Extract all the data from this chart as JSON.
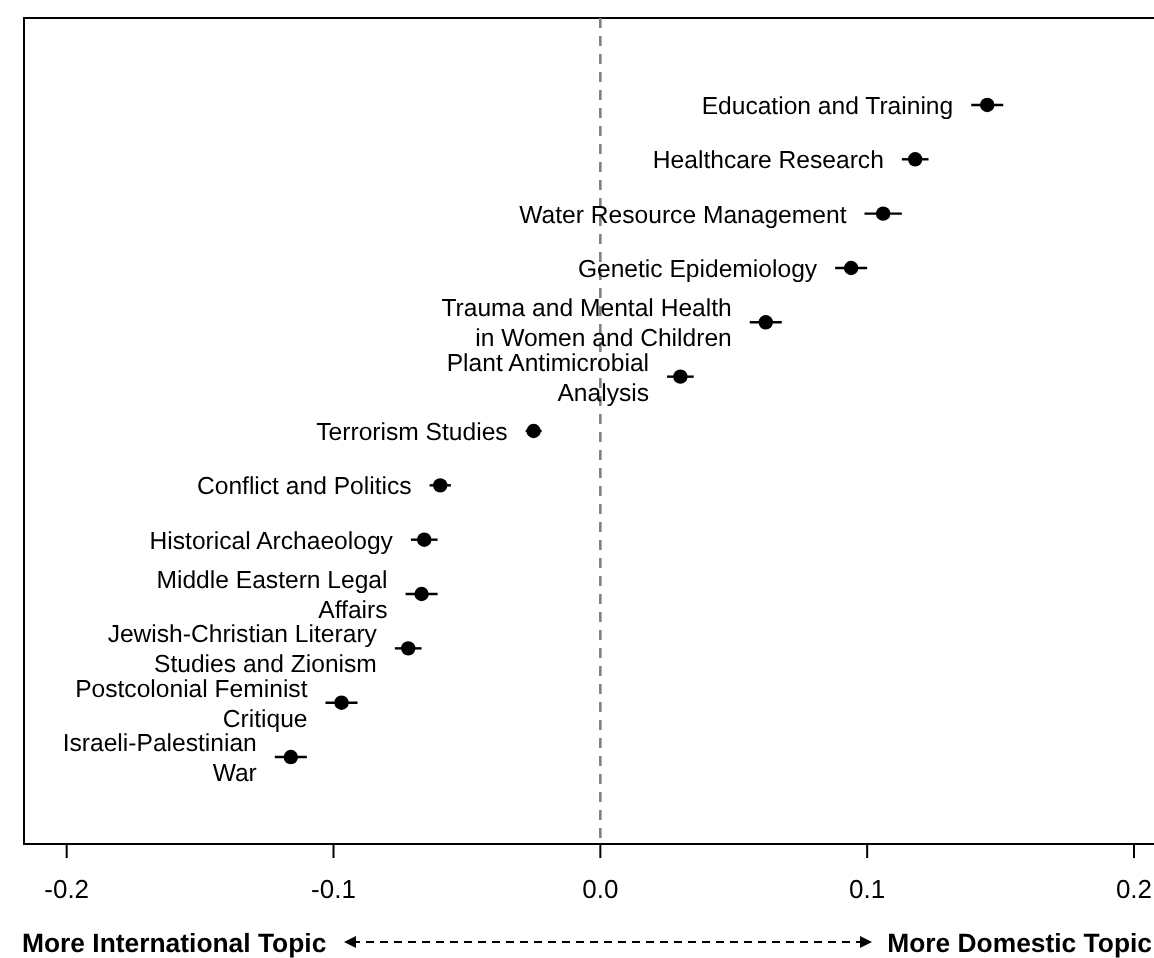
{
  "chart_data": {
    "type": "scatter",
    "orientation": "horizontal",
    "categories": [
      "Education and Training",
      "Healthcare Research",
      "Water Resource Management",
      "Genetic Epidemiology",
      "Trauma and Mental Health\nin Women and Children",
      "Plant Antimicrobial\nAnalysis",
      "Terrorism Studies",
      "Conflict and Politics",
      "Historical Archaeology",
      "Middle Eastern Legal\nAffairs",
      "Jewish-Christian Literary\nStudies and Zionism",
      "Postcolonial Feminist\nCritique",
      "Israeli-Palestinian\nWar"
    ],
    "series": [
      {
        "color": "#000000",
        "values": [
          0.145,
          0.118,
          0.106,
          0.094,
          0.062,
          0.03,
          -0.025,
          -0.06,
          -0.066,
          -0.067,
          -0.072,
          -0.097,
          -0.116
        ],
        "errors": [
          0.006,
          0.005,
          0.007,
          0.006,
          0.006,
          0.005,
          0.003,
          0.004,
          0.005,
          0.006,
          0.005,
          0.006,
          0.006
        ]
      }
    ],
    "xlim": [
      -0.216,
      0.212
    ],
    "xticks": [
      {
        "value": -0.2,
        "label": "-0.2"
      },
      {
        "value": -0.1,
        "label": "-0.1"
      },
      {
        "value": 0,
        "label": "0.0"
      },
      {
        "value": 0.1,
        "label": "0.1"
      },
      {
        "value": 0.2,
        "label": "0.2"
      }
    ],
    "ref_lines": [
      {
        "axis": "x",
        "value": 0,
        "color": "#808080",
        "line_style": "dashed"
      }
    ],
    "annotations": [
      "More International Topic",
      "More Domestic Topic"
    ],
    "marker": "circle"
  }
}
